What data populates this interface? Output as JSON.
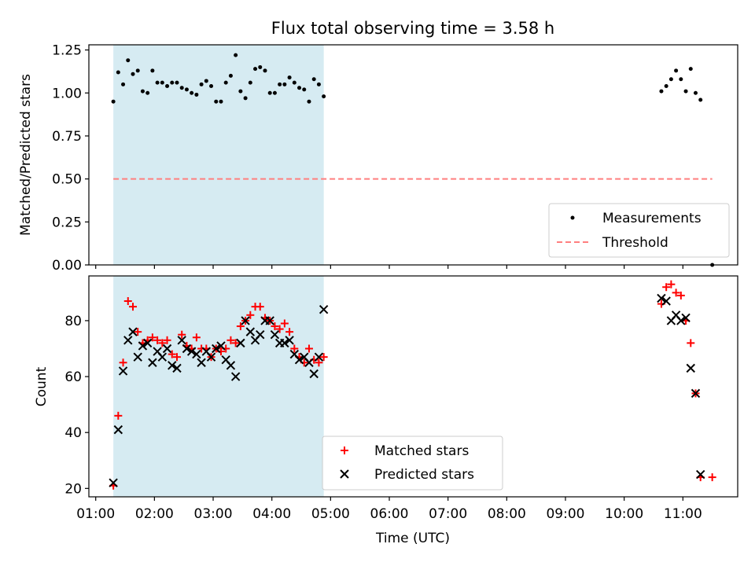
{
  "chart_data": [
    {
      "type": "scatter",
      "title": "Flux total observing time = 3.58 h",
      "xlabel": "",
      "ylabel": "Matched/Predicted stars",
      "xlim": [
        "00:53",
        "11:56"
      ],
      "ylim": [
        0,
        1.28
      ],
      "yticks": [
        0,
        0.25,
        0.5,
        0.75,
        1.0,
        1.25
      ],
      "ytick_labels": [
        "0.00",
        "0.25",
        "0.50",
        "0.75",
        "1.00",
        "1.25"
      ],
      "grid": false,
      "legend": "lower-right",
      "shaded_interval": [
        "01:18",
        "04:53"
      ],
      "shade_color": "#add8e6",
      "series": [
        {
          "name": "Measurements",
          "marker": "dot",
          "color": "#000000",
          "x": [
            "01:18",
            "01:23",
            "01:28",
            "01:33",
            "01:38",
            "01:43",
            "01:48",
            "01:53",
            "01:58",
            "02:03",
            "02:08",
            "02:13",
            "02:18",
            "02:23",
            "02:28",
            "02:33",
            "02:38",
            "02:43",
            "02:48",
            "02:53",
            "02:58",
            "03:03",
            "03:08",
            "03:13",
            "03:18",
            "03:23",
            "03:28",
            "03:33",
            "03:38",
            "03:43",
            "03:48",
            "03:53",
            "03:58",
            "04:03",
            "04:08",
            "04:13",
            "04:18",
            "04:23",
            "04:28",
            "04:33",
            "04:38",
            "04:43",
            "04:48",
            "04:53",
            "10:38",
            "10:43",
            "10:48",
            "10:53",
            "10:58",
            "11:03",
            "11:08",
            "11:13",
            "11:18",
            "11:30"
          ],
          "values": [
            0.95,
            1.12,
            1.05,
            1.19,
            1.11,
            1.13,
            1.01,
            1.0,
            1.13,
            1.06,
            1.06,
            1.04,
            1.06,
            1.06,
            1.03,
            1.02,
            1.0,
            0.99,
            1.05,
            1.07,
            1.04,
            0.95,
            0.95,
            1.06,
            1.1,
            1.22,
            1.01,
            0.97,
            1.06,
            1.14,
            1.15,
            1.13,
            1.0,
            1.0,
            1.05,
            1.05,
            1.09,
            1.06,
            1.03,
            1.02,
            0.95,
            1.08,
            1.05,
            0.98,
            1.01,
            1.04,
            1.08,
            1.13,
            1.08,
            1.01,
            1.14,
            1.0,
            0.96,
            0.0
          ]
        },
        {
          "name": "Threshold",
          "line": "dashed",
          "color": "#ff7f7f",
          "x": [
            "01:18",
            "11:30"
          ],
          "values": [
            0.5,
            0.5
          ]
        }
      ]
    },
    {
      "type": "scatter",
      "xlabel": "Time (UTC)",
      "ylabel": "Count",
      "xlim": [
        "00:53",
        "11:56"
      ],
      "ylim": [
        17,
        96
      ],
      "yticks": [
        20,
        40,
        60,
        80
      ],
      "xticks": [
        "01:00",
        "02:00",
        "03:00",
        "04:00",
        "05:00",
        "06:00",
        "07:00",
        "08:00",
        "09:00",
        "10:00",
        "11:00"
      ],
      "grid": false,
      "legend": "lower-center",
      "shaded_interval": [
        "01:18",
        "04:53"
      ],
      "shade_color": "#add8e6",
      "series": [
        {
          "name": "Matched stars",
          "marker": "plus",
          "color": "#ff0000",
          "x": [
            "01:18",
            "01:23",
            "01:28",
            "01:33",
            "01:38",
            "01:43",
            "01:48",
            "01:53",
            "01:58",
            "02:03",
            "02:08",
            "02:13",
            "02:18",
            "02:23",
            "02:28",
            "02:33",
            "02:38",
            "02:43",
            "02:48",
            "02:53",
            "02:58",
            "03:03",
            "03:08",
            "03:13",
            "03:18",
            "03:23",
            "03:28",
            "03:33",
            "03:38",
            "03:43",
            "03:48",
            "03:53",
            "03:58",
            "04:03",
            "04:08",
            "04:13",
            "04:18",
            "04:23",
            "04:28",
            "04:33",
            "04:38",
            "04:43",
            "04:48",
            "04:53",
            "10:38",
            "10:43",
            "10:48",
            "10:53",
            "10:58",
            "11:03",
            "11:08",
            "11:13",
            "11:18",
            "11:30"
          ],
          "values": [
            21,
            46,
            65,
            87,
            85,
            76,
            72,
            73,
            74,
            73,
            72,
            73,
            68,
            67,
            75,
            71,
            70,
            74,
            70,
            70,
            67,
            70,
            69,
            70,
            73,
            72,
            78,
            80,
            82,
            85,
            85,
            81,
            80,
            78,
            77,
            79,
            76,
            70,
            67,
            65,
            70,
            66,
            65,
            67,
            86,
            92,
            93,
            90,
            89,
            80,
            72,
            54,
            24,
            24
          ]
        },
        {
          "name": "Predicted stars",
          "marker": "x",
          "color": "#000000",
          "x": [
            "01:18",
            "01:23",
            "01:28",
            "01:33",
            "01:38",
            "01:43",
            "01:48",
            "01:53",
            "01:58",
            "02:03",
            "02:08",
            "02:13",
            "02:18",
            "02:23",
            "02:28",
            "02:33",
            "02:38",
            "02:43",
            "02:48",
            "02:53",
            "02:58",
            "03:03",
            "03:08",
            "03:13",
            "03:18",
            "03:23",
            "03:28",
            "03:33",
            "03:38",
            "03:43",
            "03:48",
            "03:53",
            "03:58",
            "04:03",
            "04:08",
            "04:13",
            "04:18",
            "04:23",
            "04:28",
            "04:33",
            "04:38",
            "04:43",
            "04:48",
            "04:53",
            "10:38",
            "10:43",
            "10:48",
            "10:53",
            "10:58",
            "11:03",
            "11:08",
            "11:13",
            "11:18"
          ],
          "values": [
            22,
            41,
            62,
            73,
            76,
            67,
            71,
            72,
            65,
            69,
            67,
            70,
            64,
            63,
            73,
            70,
            69,
            68,
            65,
            69,
            67,
            70,
            71,
            66,
            64,
            60,
            72,
            80,
            76,
            73,
            75,
            80,
            80,
            75,
            72,
            72,
            73,
            68,
            66,
            67,
            65,
            61,
            67,
            84,
            88,
            87,
            80,
            82,
            80,
            81,
            63,
            54,
            25
          ]
        }
      ]
    }
  ]
}
